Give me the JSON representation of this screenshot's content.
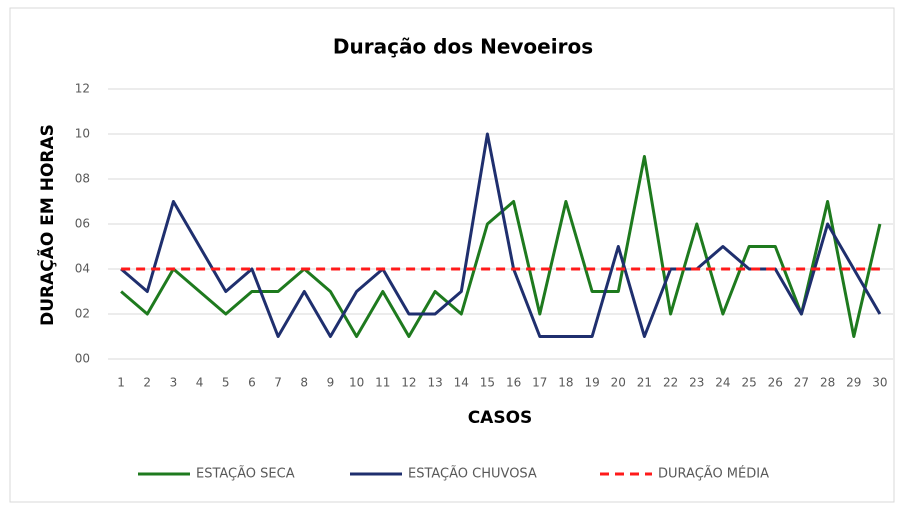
{
  "chart_data": {
    "type": "line",
    "title": "Duração dos Nevoeiros",
    "y_label": "DURAÇÃO EM HORAS",
    "x_label": "CASOS",
    "categories": [
      "1",
      "2",
      "3",
      "4",
      "5",
      "6",
      "7",
      "8",
      "9",
      "10",
      "11",
      "12",
      "13",
      "14",
      "15",
      "16",
      "17",
      "18",
      "19",
      "20",
      "21",
      "22",
      "23",
      "24",
      "25",
      "26",
      "27",
      "28",
      "29",
      "30"
    ],
    "series": [
      {
        "name": "ESTAÇÃO SECA",
        "color": "#1e7a1e",
        "dashed": false,
        "values": [
          3,
          2,
          4,
          3,
          2,
          3,
          3,
          4,
          3,
          1,
          3,
          1,
          3,
          2,
          6,
          7,
          2,
          7,
          3,
          3,
          9,
          2,
          6,
          2,
          5,
          5,
          2,
          7,
          1,
          6
        ]
      },
      {
        "name": "ESTAÇÃO CHUVOSA",
        "color": "#1f2f6e",
        "dashed": false,
        "values": [
          4,
          3,
          7,
          5,
          3,
          4,
          1,
          3,
          1,
          3,
          4,
          2,
          2,
          3,
          10,
          4,
          1,
          1,
          1,
          5,
          1,
          4,
          4,
          5,
          4,
          4,
          2,
          6,
          4,
          2
        ]
      },
      {
        "name": "DURAÇÃO MÉDIA",
        "color": "#ff1a1a",
        "dashed": true,
        "values": [
          4,
          4,
          4,
          4,
          4,
          4,
          4,
          4,
          4,
          4,
          4,
          4,
          4,
          4,
          4,
          4,
          4,
          4,
          4,
          4,
          4,
          4,
          4,
          4,
          4,
          4,
          4,
          4,
          4,
          4
        ]
      }
    ],
    "ylim": [
      0,
      12
    ],
    "yticks": [
      {
        "value": 0,
        "label": "00"
      },
      {
        "value": 2,
        "label": "02"
      },
      {
        "value": 4,
        "label": "04"
      },
      {
        "value": 6,
        "label": "06"
      },
      {
        "value": 8,
        "label": "08"
      },
      10,
      12
    ],
    "grid": true,
    "legend": "bottom"
  }
}
